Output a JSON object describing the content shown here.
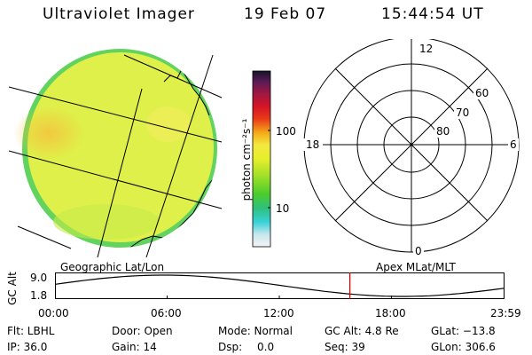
{
  "header": {
    "instrument": "Ultraviolet Imager",
    "date": "19 Feb 07",
    "time": "15:44:54 UT"
  },
  "colorbar": {
    "unit_label": "photon cm⁻²s⁻¹",
    "ticks": [
      "100",
      "10"
    ]
  },
  "polar_plot": {
    "mlt_labels": [
      "12",
      "18",
      "6",
      "0"
    ],
    "lat_labels": [
      "60",
      "70",
      "80"
    ]
  },
  "altitude_panel": {
    "y_axis_label": "GC Alt",
    "y_ticks": [
      "9.0",
      "1.8"
    ],
    "left_caption": "Geographic Lat/Lon",
    "right_caption": "Apex MLat/MLT",
    "x_ticks": [
      "00:00",
      "06:00",
      "12:00",
      "18:00",
      "23:59"
    ],
    "current_time_hours": 15.75
  },
  "status": {
    "flt": "Flt: LBHL",
    "ip": "IP: 36.0",
    "door": "Door: Open",
    "gain": "Gain: 14",
    "mode": "Mode: Normal",
    "dsp": "Dsp:",
    "dsp_value": "0.0",
    "gc_alt": "GC Alt: 4.8 Re",
    "seq": "Seq: 39",
    "glat": "GLat: −13.8",
    "glon": "GLon: 306.6"
  },
  "colors": {
    "marker": "#e00000",
    "disk_base": "#e2f24a",
    "disk_edge": "#5fd35f"
  }
}
